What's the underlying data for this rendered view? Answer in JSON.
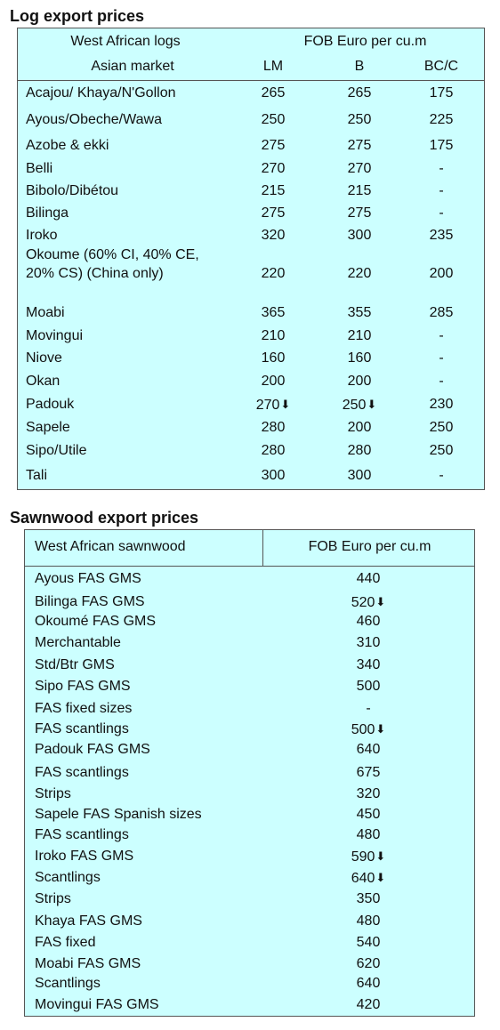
{
  "log_section": {
    "title": "Log export prices",
    "header": {
      "col1_line1": "West African logs",
      "col1_line2": "Asian market",
      "price_heading": "FOB Euro per cu.m",
      "lm": "LM",
      "b": "B",
      "bcc": "BC/C"
    },
    "rows": [
      {
        "name": "Acajou/ Khaya/N'Gollon",
        "lm": "265",
        "b": "265",
        "bcc": "175"
      },
      {
        "name": "Ayous/Obeche/Wawa",
        "lm": "250",
        "b": "250",
        "bcc": "225"
      },
      {
        "name": "Azobe & ekki",
        "lm": "275",
        "b": "275",
        "bcc": "175"
      },
      {
        "name": "Belli",
        "lm": "270",
        "b": "270",
        "bcc": "-"
      },
      {
        "name": "Bibolo/Dibétou",
        "lm": "215",
        "b": "215",
        "bcc": "-"
      },
      {
        "name": "Bilinga",
        "lm": "275",
        "b": "275",
        "bcc": "-"
      },
      {
        "name": "Iroko",
        "lm": "320",
        "b": "300",
        "bcc": "235"
      },
      {
        "name": "Okoume (60% CI, 40% CE, 20% CS) (China only)",
        "lm": "220",
        "b": "220",
        "bcc": "200"
      },
      {
        "name": "Moabi",
        "lm": "365",
        "b": "355",
        "bcc": "285"
      },
      {
        "name": "Movingui",
        "lm": "210",
        "b": "210",
        "bcc": "-"
      },
      {
        "name": "Niove",
        "lm": "160",
        "b": "160",
        "bcc": "-"
      },
      {
        "name": "Okan",
        "lm": "200",
        "b": "200",
        "bcc": "-"
      },
      {
        "name": "Padouk",
        "lm": "270",
        "b": "250",
        "bcc": "230",
        "lm_trend": "down-arrow-icon",
        "b_trend": "down-arrow-icon"
      },
      {
        "name": "Sapele",
        "lm": "280",
        "b": "200",
        "bcc": "250"
      },
      {
        "name": "Sipo/Utile",
        "lm": "280",
        "b": "280",
        "bcc": "250"
      },
      {
        "name": "Tali",
        "lm": "300",
        "b": "300",
        "bcc": "-"
      }
    ]
  },
  "sawn_section": {
    "title": "Sawnwood export prices",
    "header": {
      "col1": "West African sawnwood",
      "col2": "FOB Euro per cu.m"
    },
    "rows": [
      {
        "name": "Ayous FAS GMS",
        "price": "440"
      },
      {
        "name": "Bilinga FAS GMS",
        "price": "520",
        "trend": "down-arrow-icon"
      },
      {
        "name": "Okoumé FAS GMS",
        "price": "460"
      },
      {
        "name": "Merchantable",
        "price": "310"
      },
      {
        "name": "Std/Btr GMS",
        "price": "340"
      },
      {
        "name": "Sipo FAS GMS",
        "price": "500"
      },
      {
        "name": "FAS fixed sizes",
        "price": "-"
      },
      {
        "name": "FAS scantlings",
        "price": "500",
        "trend": "down-arrow-icon"
      },
      {
        "name": "Padouk FAS GMS",
        "price": "640"
      },
      {
        "name": "FAS scantlings",
        "price": "675"
      },
      {
        "name": "Strips",
        "price": "320"
      },
      {
        "name": "Sapele FAS Spanish sizes",
        "price": "450"
      },
      {
        "name": "FAS scantlings",
        "price": "480"
      },
      {
        "name": "Iroko FAS GMS",
        "price": "590",
        "trend": "down-arrow-icon"
      },
      {
        "name": "Scantlings",
        "price": "640",
        "trend": "down-arrow-icon"
      },
      {
        "name": "Strips",
        "price": "350"
      },
      {
        "name": "Khaya FAS GMS",
        "price": "480"
      },
      {
        "name": "FAS fixed",
        "price": "540"
      },
      {
        "name": "Moabi FAS GMS",
        "price": "620"
      },
      {
        "name": "Scantlings",
        "price": "640"
      },
      {
        "name": "Movingui FAS GMS",
        "price": "420"
      }
    ]
  },
  "colors": {
    "table_bg": "#ccffff",
    "border": "#555555"
  }
}
